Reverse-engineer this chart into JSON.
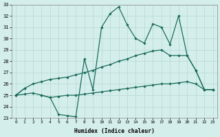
{
  "xlabel": "Humidex (Indice chaleur)",
  "x": [
    0,
    1,
    2,
    3,
    4,
    5,
    6,
    7,
    8,
    9,
    10,
    11,
    12,
    13,
    14,
    15,
    16,
    17,
    18,
    19,
    20,
    21,
    22,
    23
  ],
  "line_top": [
    25.0,
    25.6,
    null,
    25.0,
    24.8,
    23.3,
    23.2,
    23.1,
    28.2,
    25.5,
    31.0,
    32.2,
    32.8,
    31.2,
    30.0,
    29.6,
    31.3,
    31.0,
    29.5,
    32.0,
    28.5,
    27.2,
    25.5,
    25.5
  ],
  "line_mid": [
    25.0,
    25.6,
    26.0,
    26.2,
    26.4,
    26.5,
    26.6,
    26.8,
    27.0,
    27.2,
    27.5,
    27.7,
    28.0,
    28.2,
    28.5,
    28.7,
    28.9,
    29.0,
    28.5,
    28.5,
    28.5,
    27.2,
    25.5,
    25.5
  ],
  "line_bot": [
    25.0,
    25.1,
    25.2,
    25.0,
    24.8,
    24.9,
    25.0,
    25.0,
    25.1,
    25.2,
    25.3,
    25.4,
    25.5,
    25.6,
    25.7,
    25.8,
    25.9,
    26.0,
    26.0,
    26.1,
    26.2,
    26.0,
    25.5,
    25.5
  ],
  "color": "#1a6b5a",
  "bg_color": "#d4eeeb",
  "grid_color": "#b5d8d5",
  "ylim": [
    23,
    33
  ],
  "xlim": [
    -0.5,
    23.5
  ],
  "yticks": [
    23,
    24,
    25,
    26,
    27,
    28,
    29,
    30,
    31,
    32,
    33
  ],
  "xticks": [
    0,
    1,
    2,
    3,
    4,
    5,
    6,
    7,
    8,
    9,
    10,
    11,
    12,
    13,
    14,
    15,
    16,
    17,
    18,
    19,
    20,
    21,
    22,
    23
  ]
}
